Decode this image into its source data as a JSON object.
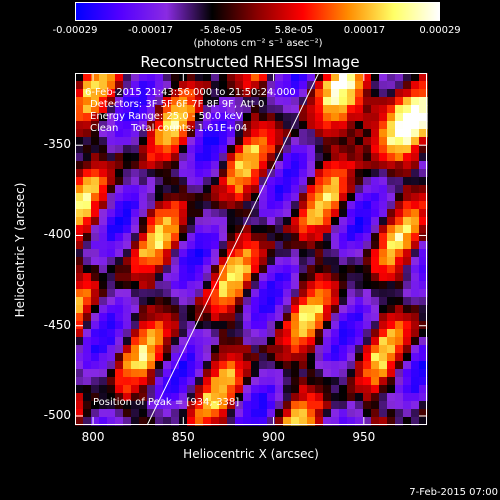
{
  "chart_data": {
    "type": "heatmap",
    "title": "Reconstructed RHESSI Image",
    "xlabel": "Heliocentric X (arcsec)",
    "ylabel": "Heliocentric Y (arcsec)",
    "xlim": [
      790,
      985
    ],
    "ylim": [
      -505,
      -310
    ],
    "xticks": [
      "800",
      "850",
      "900",
      "950"
    ],
    "xtick_values": [
      800,
      850,
      900,
      950
    ],
    "yticks": [
      "-350",
      "-400",
      "-450",
      "-500"
    ],
    "ytick_values": [
      -350,
      -400,
      -450,
      -500
    ],
    "colorbar": {
      "ticks": [
        "-0.00029",
        "-0.00017",
        "-5.8e-05",
        "5.8e-05",
        "0.00017",
        "0.00029"
      ],
      "tick_values": [
        -0.00029,
        -0.00017,
        -5.8e-05,
        5.8e-05,
        0.00017,
        0.00029
      ],
      "range": [
        -0.00029,
        0.00029
      ],
      "unit_label": "(photons cm⁻² s⁻¹ asec⁻²)",
      "colors": [
        "#0000ff",
        "#5500ff",
        "#8a2be2",
        "#000000",
        "#8b0000",
        "#ff0000",
        "#ff8c00",
        "#ffff66",
        "#ffffff"
      ]
    },
    "annotations": [
      "6-Feb-2015 21:43:56.000 to 21:50:24.000",
      "Detectors: 3F 5F 6F 7F 8F 9F, Att 0",
      "Energy Range: 25.0 - 50.0 keV",
      "Clean    Total counts: 1.61E+04"
    ],
    "peak_label": "Position of Peak = [934,-338]",
    "peak": [
      934,
      -338
    ],
    "limb_line": [
      [
        830,
        -505
      ],
      [
        925,
        -310
      ]
    ]
  },
  "footer": {
    "date": "7-Feb-2015 07:00"
  }
}
